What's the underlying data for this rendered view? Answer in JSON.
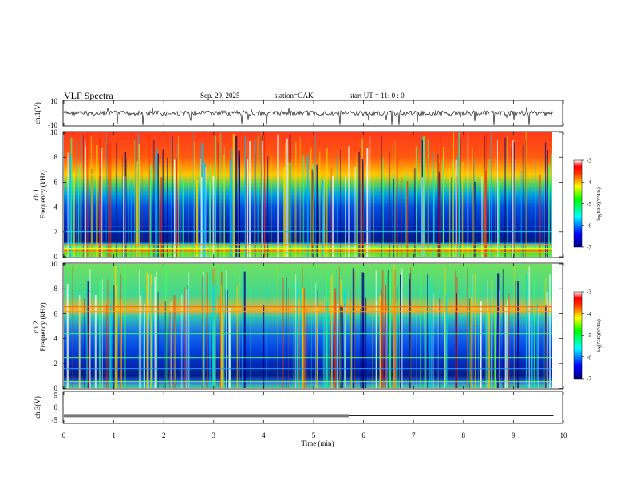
{
  "header": {
    "title": "VLF  Spectra",
    "date": "Sep. 29, 2025",
    "station": "station=GAK",
    "start": "start  UT  =    11: 0   : 0"
  },
  "chart_data": [
    {
      "type": "line",
      "panel": "ch1-waveform",
      "ylabel": "ch.1(V)",
      "ylim": [
        -10,
        10
      ],
      "yticks": [
        "10",
        "-10"
      ],
      "xlim": [
        0,
        10
      ],
      "note": "voltage waveform ~0 V with spikes; data ends at ~9.8 min"
    },
    {
      "type": "heatmap",
      "panel": "ch1-spectrogram",
      "ylabel_top": "ch.1",
      "ylabel": "Frequency  (kHz)",
      "ylim": [
        0,
        10
      ],
      "yticks": [
        "0",
        "2",
        "4",
        "6",
        "8",
        "10"
      ],
      "xlim": [
        0,
        10
      ],
      "colorbar": {
        "label": "log(PSD)(V²/Hz)",
        "ticks": [
          "-3",
          "-4",
          "-5",
          "-6",
          "-7"
        ],
        "range": [
          -7,
          -3
        ]
      },
      "note": "high PSD (red) above ~6 kHz, low (blue) 1-5 kHz, strong lines near 0.2-0.8 kHz"
    },
    {
      "type": "heatmap",
      "panel": "ch2-spectrogram",
      "ylabel_top": "ch.2",
      "ylabel": "Frequency  (kHz)",
      "ylim": [
        0,
        10
      ],
      "yticks": [
        "0",
        "2",
        "4",
        "6",
        "8",
        "10"
      ],
      "xlim": [
        0,
        10
      ],
      "colorbar": {
        "label": "log(PSD)(V²/Hz)",
        "ticks": [
          "-3",
          "-4",
          "-5",
          "-6",
          "-7"
        ],
        "range": [
          -7,
          -3
        ]
      },
      "note": "mostly green/cyan above 5 kHz, blue 0-4 kHz, orange line near 6.2 kHz"
    },
    {
      "type": "line",
      "panel": "ch3-waveform",
      "ylabel": "ch.3(V)",
      "ylim": [
        -5,
        5
      ],
      "yticks": [
        "5",
        "0",
        "-5"
      ],
      "xlim": [
        0,
        10
      ],
      "note": "flat ~-2.6 V; noisy band until ~5.7 min then clean line until ~9.8 min",
      "levels": [
        {
          "x": [
            0,
            5.7
          ],
          "y": -2.6,
          "style": "noisy"
        },
        {
          "x": [
            5.7,
            9.8
          ],
          "y": -2.6,
          "style": "clean"
        }
      ]
    }
  ],
  "xaxis": {
    "label": "Time  (min)",
    "ticks": [
      "0",
      "1",
      "2",
      "3",
      "4",
      "5",
      "6",
      "7",
      "8",
      "9",
      "10"
    ]
  }
}
